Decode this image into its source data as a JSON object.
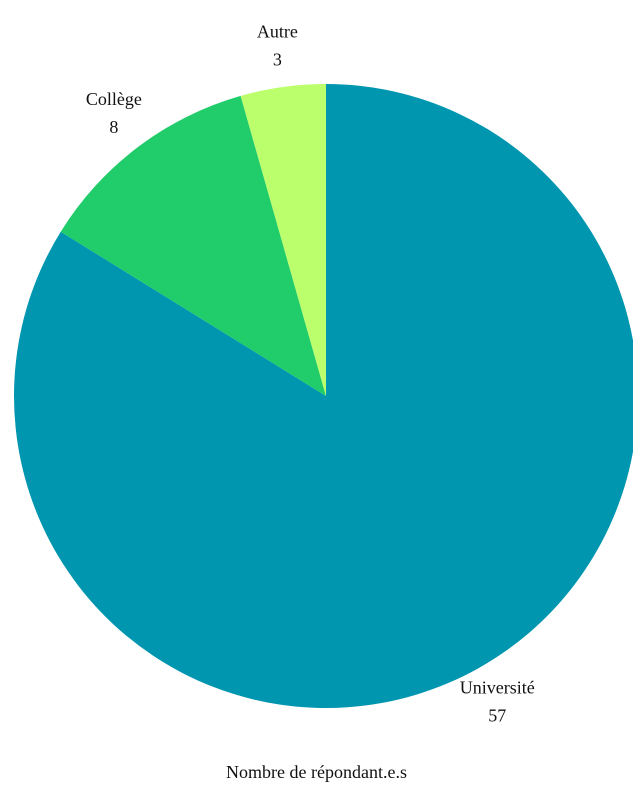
{
  "chart_data": {
    "type": "pie",
    "title": "",
    "xlabel": "Nombre de répondant.e.s",
    "slices": [
      {
        "label": "Université",
        "value": 57,
        "color": "#0096B0"
      },
      {
        "label": "Collège",
        "value": 8,
        "color": "#21CC6A"
      },
      {
        "label": "Autre",
        "value": 3,
        "color": "#BCFF6D"
      }
    ],
    "start_angle": "12 o'clock",
    "direction": "clockwise",
    "legend": "none",
    "data_labels": "category name and value outside each slice"
  }
}
